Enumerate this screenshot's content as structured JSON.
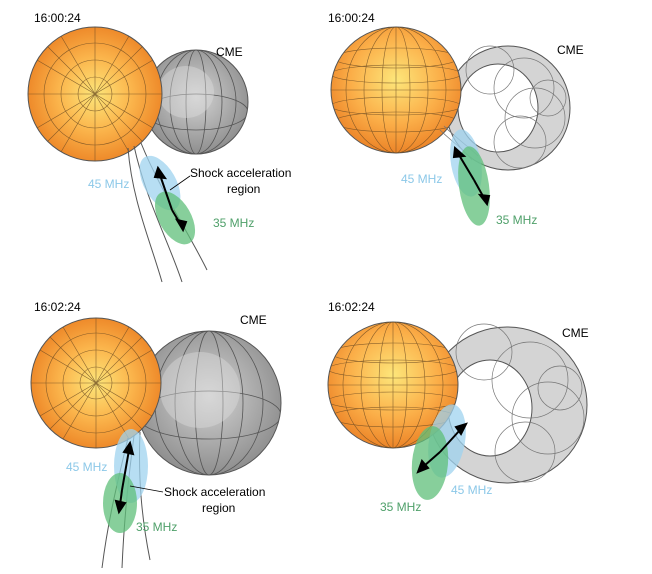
{
  "panels": [
    {
      "time": "16:00:24",
      "cme_label": "CME",
      "freq_high_label": "45 MHz",
      "freq_low_label": "35 MHz",
      "annotation_line1": "Shock acceleration",
      "annotation_line2": "region"
    },
    {
      "time": "16:00:24",
      "cme_label": "CME",
      "freq_high_label": "45 MHz",
      "freq_low_label": "35 MHz"
    },
    {
      "time": "16:02:24",
      "cme_label": "CME",
      "freq_high_label": "45 MHz",
      "freq_low_label": "35 MHz",
      "annotation_line1": "Shock acceleration",
      "annotation_line2": "region"
    },
    {
      "time": "16:02:24",
      "cme_label": "CME",
      "freq_high_label": "45 MHz",
      "freq_low_label": "35 MHz"
    }
  ],
  "colors": {
    "sun_outer": "#f08c2c",
    "sun_inner": "#fde26a",
    "cme_shell": "#9a9a9a",
    "torus_shell": "#d2d2d2",
    "freq_high": "#9fd3ef",
    "freq_low": "#5fbf7a",
    "freq_high_text": "#8cc8e8",
    "freq_low_text": "#4fa06a"
  }
}
